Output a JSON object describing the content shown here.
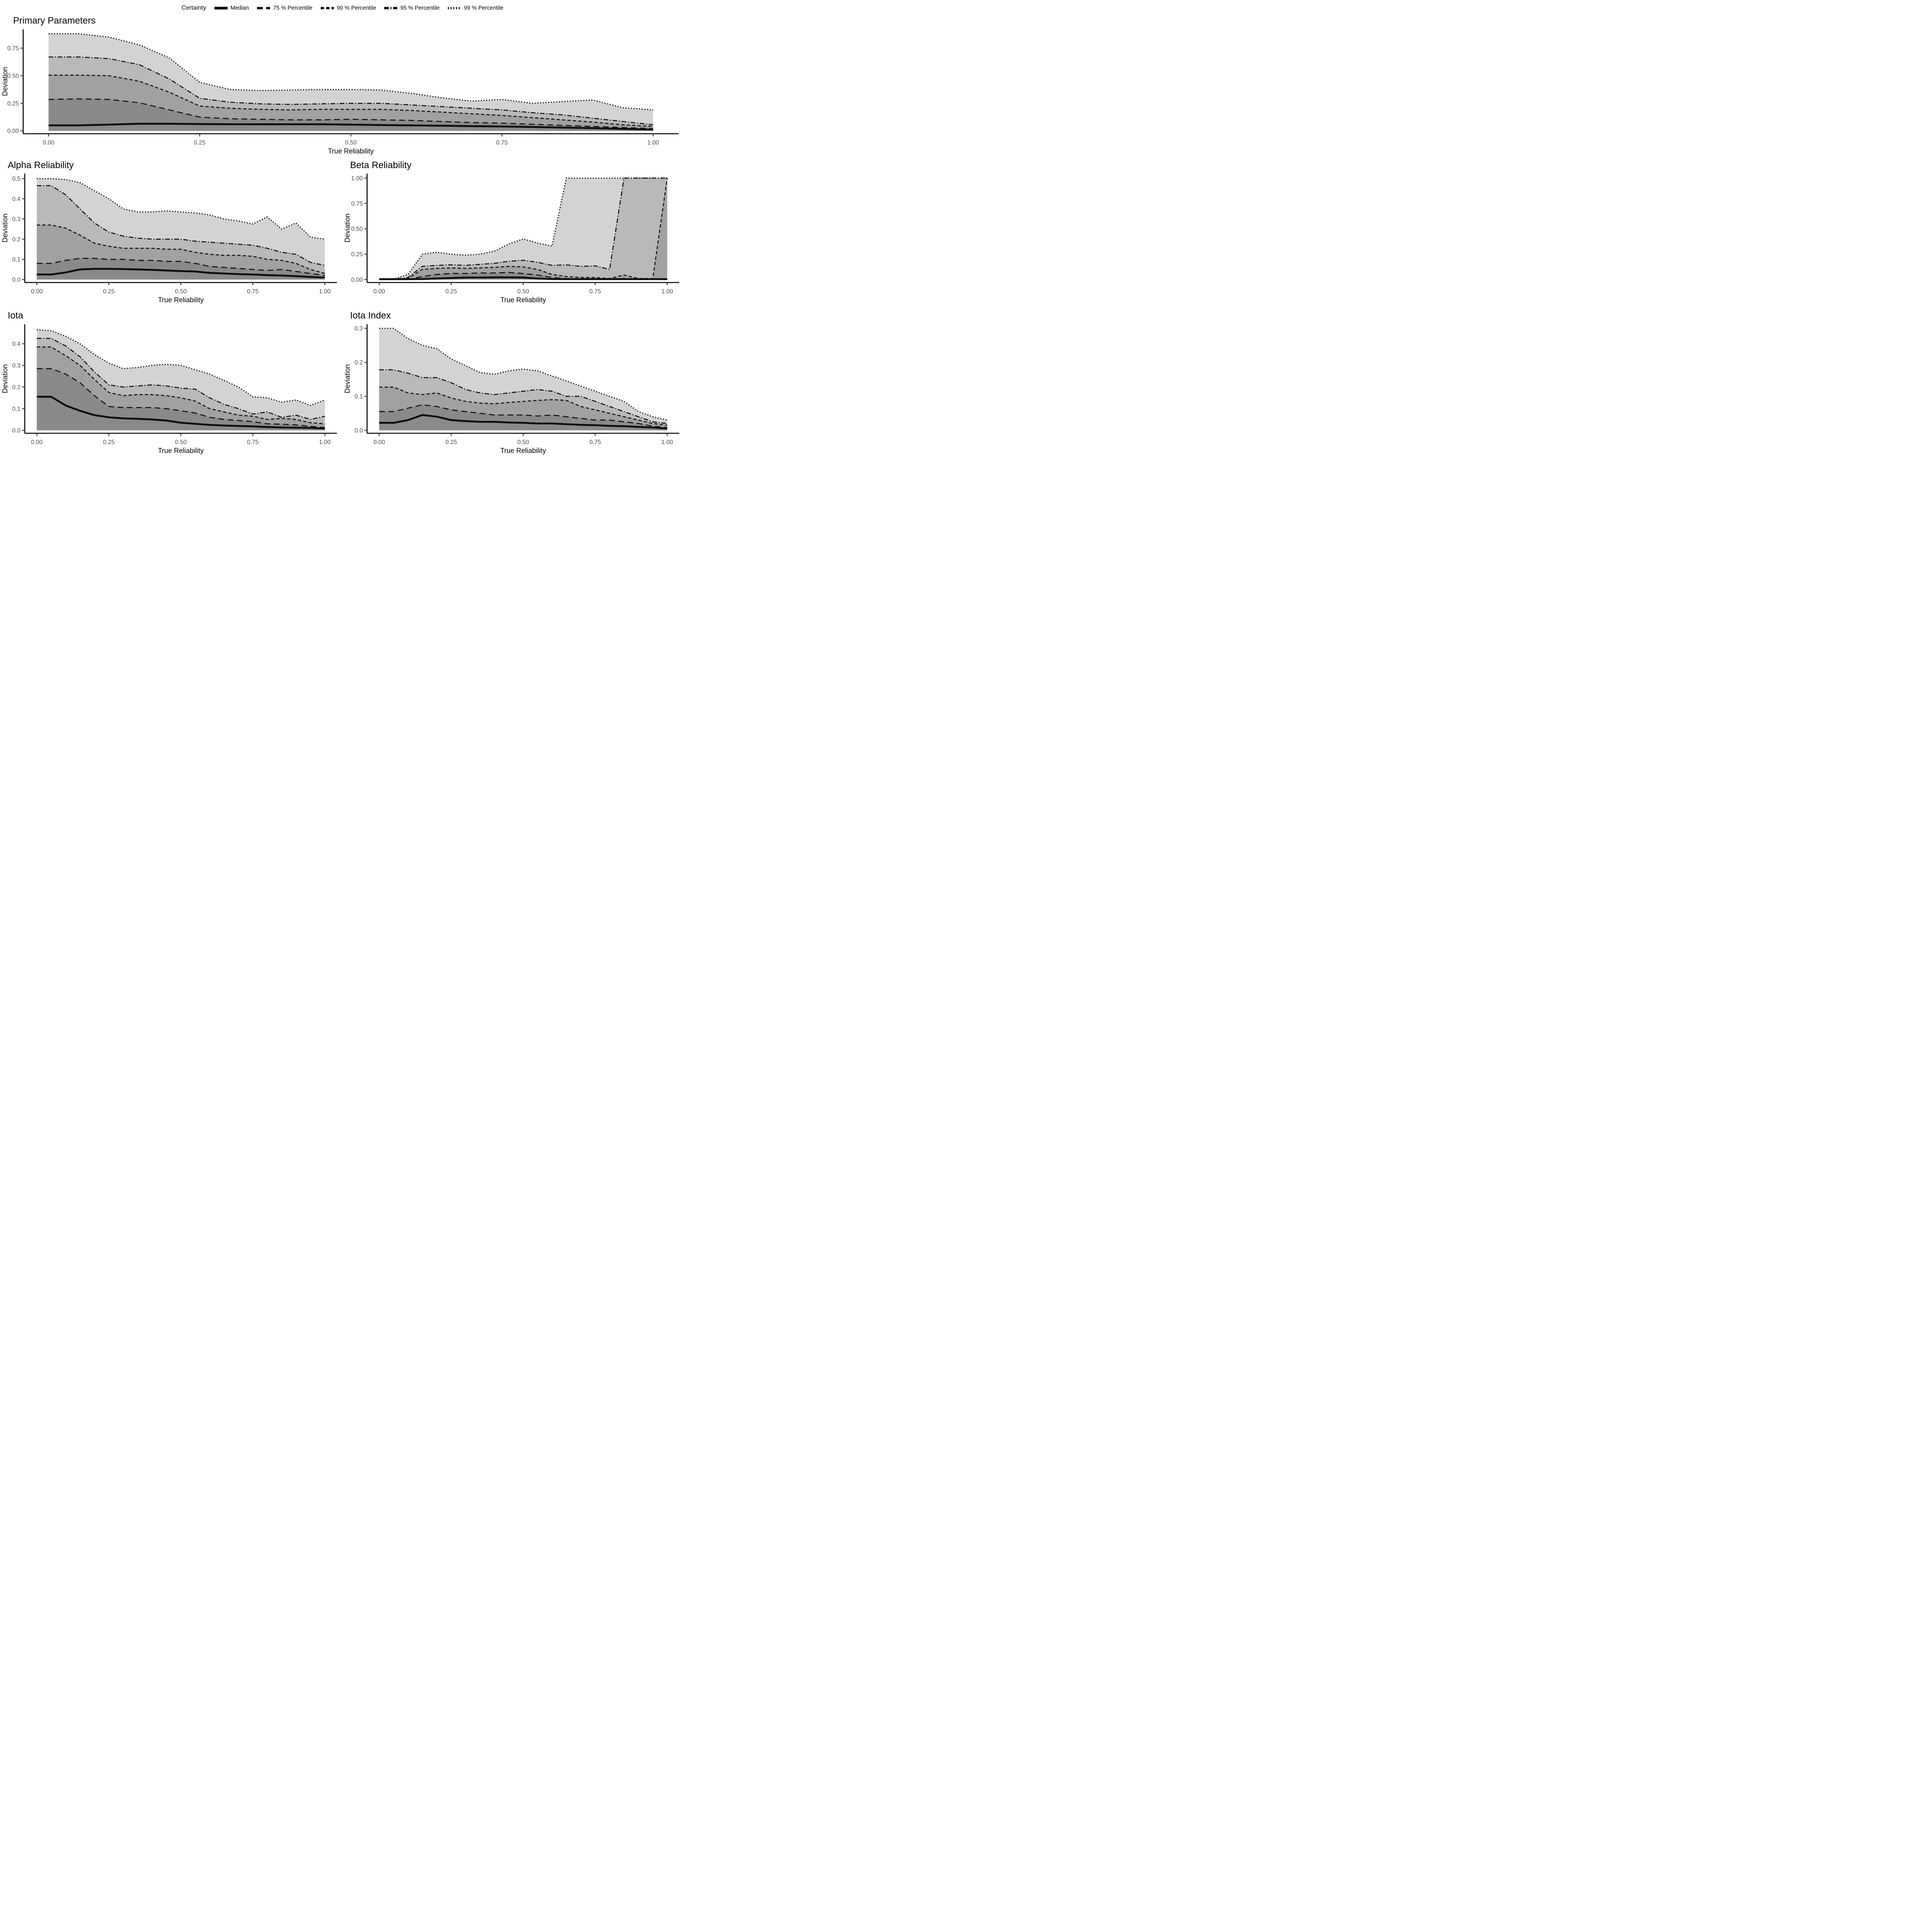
{
  "legend": {
    "title": "Certainty",
    "items": [
      {
        "label": "Median",
        "style": "solid",
        "series": "median"
      },
      {
        "label": "75 % Percentile",
        "style": "longdash",
        "series": "p75"
      },
      {
        "label": "90 % Percentile",
        "style": "dash",
        "series": "p90"
      },
      {
        "label": "95 % Percentile",
        "style": "dashdot",
        "series": "p95"
      },
      {
        "label": "99 % Percentile",
        "style": "dotted",
        "series": "p99"
      }
    ]
  },
  "colors": {
    "bands": [
      "#d3d3d3",
      "#b9b9b9",
      "#a1a1a1",
      "#8a8a8a"
    ],
    "line": "#0d0d0d",
    "axis": "#000000",
    "tick_label": "#4d4d4d"
  },
  "x_values": [
    0,
    0.05,
    0.1,
    0.15,
    0.2,
    0.25,
    0.3,
    0.35,
    0.4,
    0.45,
    0.5,
    0.55,
    0.6,
    0.65,
    0.7,
    0.75,
    0.8,
    0.85,
    0.9,
    0.95,
    1.0
  ],
  "chart_data": [
    {
      "type": "area",
      "key": "primary",
      "title": "Primary Parameters",
      "xlabel": "True Reliability",
      "ylabel": "Deviation",
      "ylim": [
        0,
        0.92
      ],
      "yticks": [
        0,
        0.25,
        0.5,
        0.75
      ],
      "ytick_labels": [
        "0.00",
        "0.25",
        "0.50",
        "0.75"
      ],
      "xticks": [
        0,
        0.25,
        0.5,
        0.75,
        1.0
      ],
      "xtick_labels": [
        "0.00",
        "0.25",
        "0.50",
        "0.75",
        "1.00"
      ],
      "series": {
        "p99": [
          0.88,
          0.88,
          0.85,
          0.78,
          0.66,
          0.44,
          0.375,
          0.365,
          0.37,
          0.375,
          0.375,
          0.37,
          0.34,
          0.3,
          0.27,
          0.285,
          0.25,
          0.265,
          0.28,
          0.21,
          0.19
        ],
        "p95": [
          0.67,
          0.67,
          0.655,
          0.6,
          0.47,
          0.295,
          0.26,
          0.245,
          0.24,
          0.245,
          0.25,
          0.25,
          0.235,
          0.22,
          0.205,
          0.19,
          0.165,
          0.145,
          0.115,
          0.085,
          0.055
        ],
        "p90": [
          0.505,
          0.505,
          0.5,
          0.45,
          0.35,
          0.225,
          0.205,
          0.195,
          0.19,
          0.195,
          0.195,
          0.195,
          0.185,
          0.17,
          0.155,
          0.14,
          0.12,
          0.1,
          0.08,
          0.055,
          0.04
        ],
        "p75": [
          0.285,
          0.29,
          0.285,
          0.255,
          0.19,
          0.125,
          0.11,
          0.105,
          0.1,
          0.1,
          0.105,
          0.1,
          0.095,
          0.085,
          0.075,
          0.07,
          0.06,
          0.05,
          0.04,
          0.03,
          0.02
        ],
        "median": [
          0.05,
          0.05,
          0.057,
          0.065,
          0.065,
          0.062,
          0.06,
          0.06,
          0.06,
          0.06,
          0.057,
          0.053,
          0.05,
          0.047,
          0.043,
          0.04,
          0.035,
          0.03,
          0.025,
          0.018,
          0.012
        ]
      }
    },
    {
      "type": "area",
      "key": "alpha",
      "title": "Alpha Reliability",
      "xlabel": "True Reliability",
      "ylabel": "Deviation",
      "ylim": [
        0,
        0.525
      ],
      "yticks": [
        0,
        0.1,
        0.2,
        0.3,
        0.4,
        0.5
      ],
      "ytick_labels": [
        "0.0",
        "0.1",
        "0.2",
        "0.3",
        "0.4",
        "0.5"
      ],
      "xticks": [
        0,
        0.25,
        0.5,
        0.75,
        1.0
      ],
      "xtick_labels": [
        "0.00",
        "0.25",
        "0.50",
        "0.75",
        "1.00"
      ],
      "series": {
        "p99": [
          0.5,
          0.5,
          0.495,
          0.48,
          0.44,
          0.4,
          0.35,
          0.335,
          0.335,
          0.34,
          0.335,
          0.33,
          0.32,
          0.3,
          0.29,
          0.275,
          0.31,
          0.25,
          0.28,
          0.21,
          0.2
        ],
        "p95": [
          0.465,
          0.465,
          0.42,
          0.35,
          0.28,
          0.235,
          0.215,
          0.205,
          0.2,
          0.2,
          0.2,
          0.19,
          0.185,
          0.18,
          0.175,
          0.17,
          0.155,
          0.135,
          0.125,
          0.085,
          0.07
        ],
        "p90": [
          0.27,
          0.27,
          0.255,
          0.22,
          0.18,
          0.165,
          0.155,
          0.155,
          0.155,
          0.15,
          0.15,
          0.135,
          0.125,
          0.12,
          0.12,
          0.115,
          0.1,
          0.095,
          0.08,
          0.05,
          0.03
        ],
        "p75": [
          0.08,
          0.08,
          0.095,
          0.105,
          0.105,
          0.1,
          0.1,
          0.095,
          0.095,
          0.09,
          0.09,
          0.08,
          0.065,
          0.06,
          0.055,
          0.05,
          0.045,
          0.05,
          0.04,
          0.03,
          0.02
        ],
        "median": [
          0.025,
          0.025,
          0.035,
          0.05,
          0.053,
          0.053,
          0.052,
          0.05,
          0.048,
          0.045,
          0.042,
          0.04,
          0.033,
          0.03,
          0.027,
          0.025,
          0.022,
          0.02,
          0.017,
          0.013,
          0.01
        ]
      }
    },
    {
      "type": "area",
      "key": "beta",
      "title": "Beta Reliability",
      "xlabel": "True Reliability",
      "ylabel": "Deviation",
      "ylim": [
        0,
        1.045
      ],
      "yticks": [
        0,
        0.25,
        0.5,
        0.75,
        1.0
      ],
      "ytick_labels": [
        "0.00",
        "0.25",
        "0.50",
        "0.75",
        "1.00"
      ],
      "xticks": [
        0,
        0.25,
        0.5,
        0.75,
        1.0
      ],
      "xtick_labels": [
        "0.00",
        "0.25",
        "0.50",
        "0.75",
        "1.00"
      ],
      "series": {
        "p99": [
          0,
          0.005,
          0.05,
          0.25,
          0.27,
          0.25,
          0.24,
          0.25,
          0.28,
          0.35,
          0.4,
          0.36,
          0.33,
          1,
          1,
          1,
          1,
          1,
          1,
          1,
          1
        ],
        "p95": [
          0,
          0,
          0.02,
          0.13,
          0.14,
          0.145,
          0.14,
          0.15,
          0.16,
          0.18,
          0.19,
          0.17,
          0.14,
          0.145,
          0.13,
          0.135,
          0.1,
          1,
          1,
          1,
          1
        ],
        "p90": [
          0,
          0,
          0.01,
          0.1,
          0.11,
          0.115,
          0.11,
          0.115,
          0.12,
          0.13,
          0.125,
          0.1,
          0.05,
          0.03,
          0.02,
          0.02,
          0.01,
          0.045,
          0.01,
          0.01,
          1
        ],
        "p75": [
          0,
          0,
          0,
          0.03,
          0.05,
          0.06,
          0.06,
          0.065,
          0.065,
          0.07,
          0.06,
          0.045,
          0.02,
          0.01,
          0.005,
          0.005,
          0.005,
          0.01,
          0.005,
          0.005,
          0.005
        ],
        "median": [
          0.004,
          0.004,
          0.004,
          0.005,
          0.01,
          0.015,
          0.02,
          0.02,
          0.022,
          0.022,
          0.02,
          0.01,
          0.005,
          0.004,
          0.004,
          0.004,
          0.004,
          0.004,
          0.004,
          0.004,
          0.004
        ]
      }
    },
    {
      "type": "area",
      "key": "iota",
      "title": "Iota",
      "xlabel": "True Reliability",
      "ylabel": "Deviation",
      "ylim": [
        0,
        0.49
      ],
      "yticks": [
        0,
        0.1,
        0.2,
        0.3,
        0.4
      ],
      "ytick_labels": [
        "0.0",
        "0.1",
        "0.2",
        "0.3",
        "0.4"
      ],
      "xticks": [
        0,
        0.25,
        0.5,
        0.75,
        1.0
      ],
      "xtick_labels": [
        "0.00",
        "0.25",
        "0.50",
        "0.75",
        "1.00"
      ],
      "series": {
        "p99": [
          0.465,
          0.46,
          0.435,
          0.4,
          0.35,
          0.31,
          0.285,
          0.29,
          0.3,
          0.305,
          0.3,
          0.28,
          0.26,
          0.23,
          0.2,
          0.155,
          0.15,
          0.13,
          0.14,
          0.115,
          0.14
        ],
        "p95": [
          0.425,
          0.425,
          0.39,
          0.34,
          0.27,
          0.21,
          0.2,
          0.205,
          0.21,
          0.205,
          0.195,
          0.19,
          0.15,
          0.12,
          0.1,
          0.075,
          0.085,
          0.06,
          0.07,
          0.05,
          0.065
        ],
        "p90": [
          0.385,
          0.385,
          0.345,
          0.3,
          0.235,
          0.175,
          0.16,
          0.165,
          0.165,
          0.16,
          0.15,
          0.135,
          0.1,
          0.085,
          0.07,
          0.065,
          0.05,
          0.055,
          0.05,
          0.035,
          0.03
        ],
        "p75": [
          0.285,
          0.285,
          0.26,
          0.22,
          0.16,
          0.11,
          0.105,
          0.105,
          0.105,
          0.1,
          0.09,
          0.08,
          0.06,
          0.05,
          0.045,
          0.04,
          0.03,
          0.028,
          0.025,
          0.018,
          0.012
        ],
        "median": [
          0.155,
          0.155,
          0.115,
          0.09,
          0.07,
          0.06,
          0.055,
          0.053,
          0.05,
          0.045,
          0.035,
          0.03,
          0.025,
          0.022,
          0.02,
          0.018,
          0.015,
          0.013,
          0.012,
          0.011,
          0.008
        ]
      }
    },
    {
      "type": "area",
      "key": "iota_index",
      "title": "Iota Index",
      "xlabel": "True Reliability",
      "ylabel": "Deviation",
      "ylim": [
        0,
        0.312
      ],
      "yticks": [
        0,
        0.1,
        0.2,
        0.3
      ],
      "ytick_labels": [
        "0.0",
        "0.1",
        "0.2",
        "0.3"
      ],
      "xticks": [
        0,
        0.25,
        0.5,
        0.75,
        1.0
      ],
      "xtick_labels": [
        "0.00",
        "0.25",
        "0.50",
        "0.75",
        "1.00"
      ],
      "series": {
        "p99": [
          0.3,
          0.3,
          0.27,
          0.25,
          0.24,
          0.21,
          0.19,
          0.17,
          0.165,
          0.175,
          0.18,
          0.175,
          0.16,
          0.145,
          0.13,
          0.115,
          0.1,
          0.085,
          0.055,
          0.04,
          0.03
        ],
        "p95": [
          0.178,
          0.178,
          0.168,
          0.155,
          0.155,
          0.14,
          0.12,
          0.11,
          0.105,
          0.11,
          0.115,
          0.12,
          0.115,
          0.1,
          0.1,
          0.085,
          0.07,
          0.055,
          0.04,
          0.025,
          0.02
        ],
        "p90": [
          0.127,
          0.127,
          0.11,
          0.105,
          0.11,
          0.095,
          0.085,
          0.08,
          0.078,
          0.082,
          0.085,
          0.088,
          0.09,
          0.088,
          0.07,
          0.06,
          0.05,
          0.04,
          0.03,
          0.02,
          0.015
        ],
        "p75": [
          0.055,
          0.055,
          0.065,
          0.075,
          0.07,
          0.06,
          0.055,
          0.05,
          0.045,
          0.045,
          0.045,
          0.042,
          0.045,
          0.04,
          0.035,
          0.03,
          0.03,
          0.025,
          0.02,
          0.012,
          0.008
        ],
        "median": [
          0.022,
          0.022,
          0.03,
          0.045,
          0.04,
          0.03,
          0.027,
          0.025,
          0.025,
          0.023,
          0.022,
          0.02,
          0.02,
          0.018,
          0.016,
          0.015,
          0.013,
          0.012,
          0.01,
          0.008,
          0.005
        ]
      }
    }
  ]
}
